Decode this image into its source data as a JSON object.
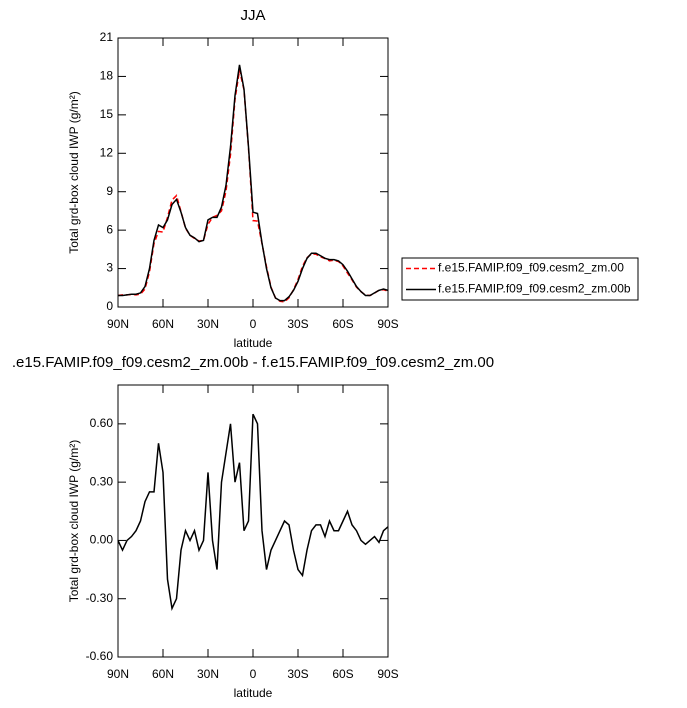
{
  "chart_data": [
    {
      "type": "line",
      "title": "JJA",
      "xlabel": "latitude",
      "ylabel": "Total grd-box cloud IWP (g/m²)",
      "x": [
        90,
        87,
        84,
        81,
        78,
        75,
        72,
        69,
        66,
        63,
        60,
        57,
        54,
        51,
        48,
        45,
        42,
        39,
        36,
        33,
        30,
        27,
        24,
        21,
        18,
        15,
        12,
        9,
        6,
        3,
        0,
        -3,
        -6,
        -9,
        -12,
        -15,
        -18,
        -21,
        -24,
        -27,
        -30,
        -33,
        -36,
        -39,
        -42,
        -45,
        -48,
        -51,
        -54,
        -57,
        -60,
        -63,
        -66,
        -69,
        -72,
        -75,
        -78,
        -81,
        -84,
        -87,
        -90
      ],
      "series": [
        {
          "name": "f.e15.FAMIP.f09_f09.cesm2_zm.00",
          "color": "#ff0000",
          "dashed": true,
          "values": [
            0.9,
            0.95,
            0.95,
            0.98,
            0.95,
            1.0,
            1.4,
            2.75,
            4.95,
            5.9,
            5.85,
            7.0,
            8.35,
            8.7,
            7.45,
            6.15,
            5.6,
            5.35,
            5.15,
            5.2,
            6.45,
            7.0,
            7.15,
            7.5,
            9.05,
            11.9,
            16.2,
            18.5,
            16.95,
            12.4,
            6.75,
            6.7,
            4.95,
            3.15,
            1.55,
            0.7,
            0.45,
            0.4,
            0.72,
            1.35,
            2.15,
            3.18,
            3.85,
            4.15,
            4.12,
            3.92,
            3.78,
            3.6,
            3.65,
            3.55,
            3.2,
            2.65,
            2.12,
            1.55,
            1.2,
            0.92,
            0.9,
            1.08,
            1.31,
            1.35,
            1.23
          ]
        },
        {
          "name": "f.e15.FAMIP.f09_f09.cesm2_zm.00b",
          "color": "#000000",
          "dashed": false,
          "values": [
            0.9,
            0.9,
            0.95,
            1.0,
            1.0,
            1.1,
            1.6,
            3.0,
            5.2,
            6.4,
            6.2,
            6.8,
            8.0,
            8.4,
            7.4,
            6.2,
            5.6,
            5.4,
            5.1,
            5.2,
            6.8,
            7.0,
            7.0,
            7.8,
            9.5,
            12.5,
            16.5,
            18.9,
            17.0,
            12.5,
            7.4,
            7.3,
            5.0,
            3.0,
            1.5,
            0.7,
            0.5,
            0.5,
            0.8,
            1.3,
            2.0,
            3.0,
            3.8,
            4.2,
            4.2,
            4.0,
            3.8,
            3.7,
            3.7,
            3.6,
            3.3,
            2.8,
            2.2,
            1.6,
            1.2,
            0.9,
            0.9,
            1.1,
            1.3,
            1.4,
            1.3
          ]
        }
      ],
      "xlim": [
        90,
        -90
      ],
      "xticks": [
        {
          "value": 90,
          "label": "90N"
        },
        {
          "value": 60,
          "label": "60N"
        },
        {
          "value": 30,
          "label": "30N"
        },
        0,
        {
          "value": -30,
          "label": "30S"
        },
        {
          "value": -60,
          "label": "60S"
        },
        {
          "value": -90,
          "label": "90S"
        }
      ],
      "ylim": [
        0,
        21
      ],
      "yticks": [
        0,
        3,
        6,
        9,
        12,
        15,
        18,
        21
      ],
      "legend": "right"
    },
    {
      "type": "line",
      "title": ".e15.FAMIP.f09_f09.cesm2_zm.00b - f.e15.FAMIP.f09_f09.cesm2_zm.00",
      "xlabel": "latitude",
      "ylabel": "Total grd-box cloud IWP (g/m²)",
      "x": [
        90,
        87,
        84,
        81,
        78,
        75,
        72,
        69,
        66,
        63,
        60,
        57,
        54,
        51,
        48,
        45,
        42,
        39,
        36,
        33,
        30,
        27,
        24,
        21,
        18,
        15,
        12,
        9,
        6,
        3,
        0,
        -3,
        -6,
        -9,
        -12,
        -15,
        -18,
        -21,
        -24,
        -27,
        -30,
        -33,
        -36,
        -39,
        -42,
        -45,
        -48,
        -51,
        -54,
        -57,
        -60,
        -63,
        -66,
        -69,
        -72,
        -75,
        -78,
        -81,
        -84,
        -87,
        -90
      ],
      "color": "#000000",
      "values": [
        0.0,
        -0.05,
        0.0,
        0.02,
        0.05,
        0.1,
        0.2,
        0.25,
        0.25,
        0.5,
        0.35,
        -0.2,
        -0.35,
        -0.3,
        -0.05,
        0.05,
        0.0,
        0.05,
        -0.05,
        0.0,
        0.35,
        0.0,
        -0.15,
        0.3,
        0.45,
        0.6,
        0.3,
        0.4,
        0.05,
        0.1,
        0.65,
        0.6,
        0.05,
        -0.15,
        -0.05,
        0.0,
        0.05,
        0.1,
        0.08,
        -0.05,
        -0.15,
        -0.18,
        -0.05,
        0.05,
        0.08,
        0.08,
        0.02,
        0.1,
        0.05,
        0.05,
        0.1,
        0.15,
        0.08,
        0.05,
        0.0,
        -0.02,
        0.0,
        0.02,
        -0.01,
        0.05,
        0.07
      ],
      "xlim": [
        90,
        -90
      ],
      "xticks": [
        {
          "value": 90,
          "label": "90N"
        },
        {
          "value": 60,
          "label": "60N"
        },
        {
          "value": 30,
          "label": "30N"
        },
        0,
        {
          "value": -30,
          "label": "30S"
        },
        {
          "value": -60,
          "label": "60S"
        },
        {
          "value": -90,
          "label": "90S"
        }
      ],
      "ylim": [
        -0.6,
        0.8
      ],
      "yticks": [
        {
          "value": -0.6,
          "label": "-0.60"
        },
        {
          "value": -0.3,
          "label": "-0.30"
        },
        {
          "value": 0,
          "label": "0.00"
        },
        {
          "value": 0.3,
          "label": "0.30"
        },
        {
          "value": 0.6,
          "label": "0.60"
        }
      ]
    }
  ]
}
